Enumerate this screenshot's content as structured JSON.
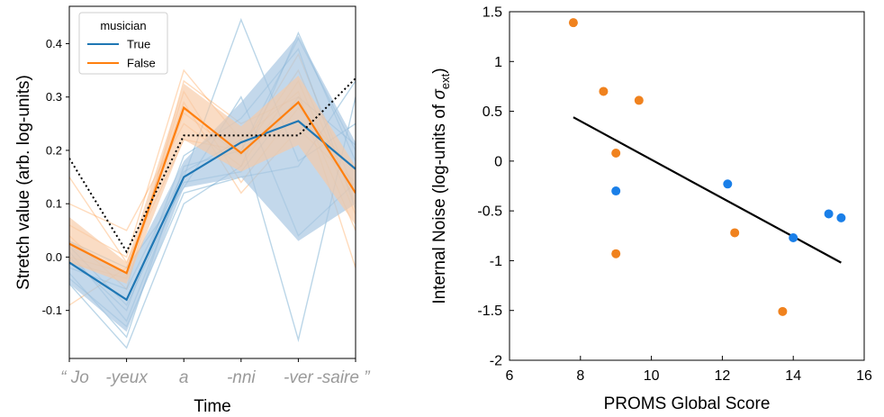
{
  "colors": {
    "musician_true": "#1f77b4",
    "musician_false": "#ff7f0e",
    "true_band": "#a9c8e3",
    "false_band": "#f7c9a4",
    "scatter_blue": "#1a7fe8",
    "scatter_orange": "#f0821e",
    "regression": "#000000",
    "reference": "#000000",
    "word_gray": "#9a9a9a"
  },
  "chart_data": [
    {
      "type": "line",
      "xlabel": "Time",
      "ylabel": "Stretch value (arb. log-units)",
      "categories": [
        "“ Jo",
        "-yeux",
        "a",
        "-nni",
        "-ver",
        "-saire ”"
      ],
      "ylim": [
        -0.19,
        0.47
      ],
      "yticks": [
        -0.1,
        0.0,
        0.1,
        0.2,
        0.3,
        0.4
      ],
      "ytick_labels": [
        "-0.1",
        "0.0",
        "0.1",
        "0.2",
        "0.3",
        "0.4"
      ],
      "grid": false,
      "legend": {
        "title": "musician",
        "position": "top-left",
        "entries": [
          "True",
          "False"
        ]
      },
      "series": [
        {
          "name": "True",
          "values": [
            -0.01,
            -0.08,
            0.15,
            0.215,
            0.255,
            0.165
          ],
          "band_low": [
            -0.05,
            -0.14,
            0.13,
            0.15,
            0.03,
            0.1
          ],
          "band_high": [
            0.03,
            -0.03,
            0.18,
            0.29,
            0.415,
            0.215
          ]
        },
        {
          "name": "False",
          "values": [
            0.025,
            -0.03,
            0.28,
            0.195,
            0.29,
            0.12
          ],
          "band_low": [
            -0.01,
            -0.05,
            0.22,
            0.16,
            0.21,
            0.06
          ],
          "band_high": [
            0.075,
            -0.01,
            0.325,
            0.245,
            0.34,
            0.17
          ]
        }
      ],
      "reference_line": {
        "style": "dotted",
        "values": [
          0.185,
          0.01,
          0.228,
          0.228,
          0.228,
          0.335
        ]
      },
      "individual_true": [
        [
          -0.03,
          -0.15,
          0.17,
          0.2,
          0.41,
          0.2
        ],
        [
          0.01,
          -0.12,
          0.15,
          0.445,
          0.18,
          0.25
        ],
        [
          -0.05,
          -0.17,
          0.1,
          0.17,
          0.42,
          0.18
        ],
        [
          0.03,
          -0.02,
          0.13,
          0.3,
          0.04,
          0.14
        ],
        [
          -0.02,
          -0.06,
          0.16,
          0.22,
          -0.155,
          0.3
        ],
        [
          0.0,
          -0.1,
          0.19,
          0.26,
          0.39,
          0.09
        ],
        [
          -0.04,
          -0.13,
          0.12,
          0.15,
          0.17,
          0.33
        ],
        [
          0.02,
          -0.09,
          0.14,
          0.16,
          0.3,
          0.21
        ]
      ],
      "individual_false": [
        [
          0.06,
          0.0,
          0.35,
          0.22,
          0.31,
          -0.02
        ],
        [
          0.1,
          0.05,
          0.25,
          0.17,
          0.33,
          0.08
        ],
        [
          -0.01,
          -0.04,
          0.31,
          0.14,
          0.28,
          0.16
        ],
        [
          0.15,
          -0.01,
          0.22,
          0.2,
          0.38,
          0.12
        ],
        [
          0.0,
          -0.03,
          0.29,
          0.12,
          0.24,
          0.14
        ],
        [
          0.04,
          -0.06,
          0.33,
          0.25,
          0.3,
          0.05
        ],
        [
          -0.09,
          -0.02,
          0.27,
          0.19,
          0.35,
          0.1
        ]
      ]
    },
    {
      "type": "scatter",
      "xlabel": "PROMS Global Score",
      "ylabel": "Internal Noise (log-units of σext)",
      "xlim": [
        6,
        16
      ],
      "ylim": [
        -2,
        1.5
      ],
      "xticks": [
        6,
        8,
        10,
        12,
        14,
        16
      ],
      "xtick_labels": [
        "6",
        "8",
        "10",
        "12",
        "14",
        "16"
      ],
      "yticks": [
        -2,
        -1.5,
        -1,
        -0.5,
        0,
        0.5,
        1,
        1.5
      ],
      "ytick_labels": [
        "-2",
        "-1.5",
        "-1",
        "-0.5",
        "0",
        "0.5",
        "1",
        "1.5"
      ],
      "grid": false,
      "points_orange": [
        {
          "x": 7.8,
          "y": 1.39
        },
        {
          "x": 8.65,
          "y": 0.7
        },
        {
          "x": 9.65,
          "y": 0.61
        },
        {
          "x": 9.0,
          "y": 0.08
        },
        {
          "x": 9.0,
          "y": -0.93
        },
        {
          "x": 12.35,
          "y": -0.72
        },
        {
          "x": 13.7,
          "y": -1.51
        }
      ],
      "points_blue": [
        {
          "x": 9.0,
          "y": -0.3
        },
        {
          "x": 12.15,
          "y": -0.23
        },
        {
          "x": 14.0,
          "y": -0.77
        },
        {
          "x": 15.0,
          "y": -0.53
        },
        {
          "x": 15.35,
          "y": -0.57
        }
      ],
      "regression_line": {
        "x": [
          7.8,
          15.35
        ],
        "y": [
          0.44,
          -1.02
        ]
      }
    }
  ]
}
